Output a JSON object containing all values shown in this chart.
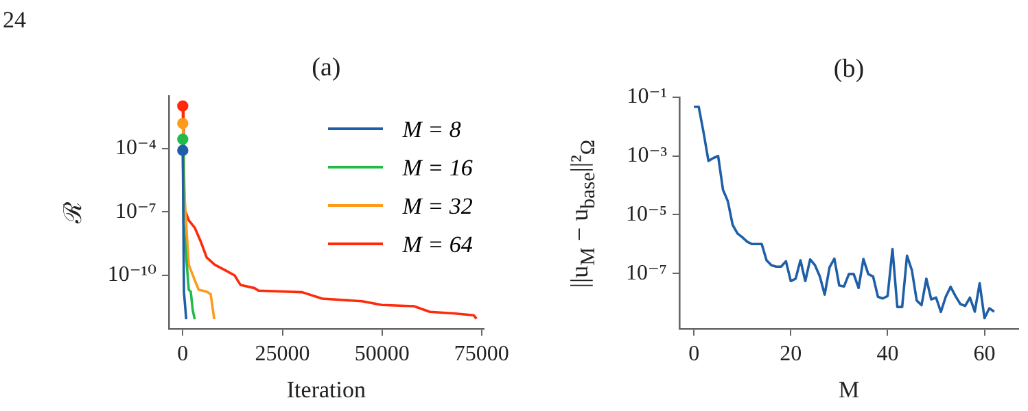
{
  "chart_data": [
    {
      "type": "line",
      "title": "(a)",
      "xlabel": "Iteration",
      "ylabel": "ℛ",
      "annotations": [
        "24"
      ],
      "log": "y",
      "grid": false,
      "legend": "top right",
      "xlim": [
        -3500,
        75500
      ],
      "xticks": [
        0,
        25000,
        50000,
        75000
      ],
      "ylim": [
        3e-13,
        0.03
      ],
      "yticks": [
        {
          "value": 0.0001,
          "label": "10⁻⁴"
        },
        {
          "value": 1e-07,
          "label": "10⁻⁷"
        },
        {
          "value": 1e-10,
          "label": "10⁻¹⁰"
        }
      ],
      "series": [
        {
          "name": "M = 8",
          "color": "#1f5fa8",
          "x": [
            0,
            300,
            870
          ],
          "values": [
            8e-05,
            1.6e-11,
            8.5e-13
          ]
        },
        {
          "name": "M = 16",
          "color": "#22bb4a",
          "x": [
            0,
            200,
            1500,
            2000,
            2500,
            3000
          ],
          "values": [
            0.00027,
            3.2e-08,
            2.1e-11,
            1.7e-11,
            2.3e-12,
            8.5e-13
          ]
        },
        {
          "name": "M = 32",
          "color": "#ff9a1a",
          "x": [
            0,
            500,
            1500,
            3000,
            4000,
            6000,
            7000,
            7900
          ],
          "values": [
            0.0015,
            3.5e-07,
            3.2e-10,
            6e-11,
            2.1e-11,
            1.7e-11,
            1.3e-11,
            8.5e-13
          ]
        },
        {
          "name": "M = 64",
          "color": "#ff2a0a",
          "x": [
            0,
            200,
            500,
            1500,
            3000,
            4500,
            6000,
            8000,
            11000,
            13000,
            14500,
            18000,
            19000,
            30000,
            35000,
            45000,
            50000,
            58000,
            62000,
            68000,
            73000,
            73700
          ],
          "values": [
            0.01,
            7e-06,
            1.3e-07,
            4e-08,
            1.8e-08,
            4e-09,
            7e-10,
            3.2e-10,
            1.6e-10,
            1e-10,
            3.5e-11,
            2.5e-11,
            1.9e-11,
            1.6e-11,
            8e-12,
            6e-12,
            4e-12,
            3.5e-12,
            1.9e-12,
            1.6e-12,
            1.3e-12,
            9e-13
          ]
        },
        {
          "type": "scatter",
          "marker": "circle",
          "x": [
            0,
            0,
            0,
            0
          ],
          "values": [
            0.01,
            0.0015,
            0.00027,
            8e-05
          ],
          "colors": [
            "#ff2a0a",
            "#ff9a1a",
            "#22bb4a",
            "#1f5fa8"
          ]
        }
      ]
    },
    {
      "type": "line",
      "title": "(b)",
      "xlabel": "M",
      "ylabel": "||u$_{M}$ − u$_{base}$||²$_{Ω}$",
      "log": "y",
      "grid": false,
      "xlim": [
        -3,
        67
      ],
      "xticks": [
        0,
        20,
        40,
        60
      ],
      "ylim": [
        1.3e-09,
        0.1
      ],
      "yticks": [
        {
          "value": 0.1,
          "label": "10⁻¹"
        },
        {
          "value": 0.001,
          "label": "10⁻³"
        },
        {
          "value": 1e-05,
          "label": "10⁻⁵"
        },
        {
          "value": 1e-07,
          "label": "10⁻⁷"
        }
      ],
      "series": [
        {
          "color": "#1f5fa8",
          "x": [
            0,
            1,
            2,
            3,
            4,
            5,
            6,
            7,
            8,
            9,
            10,
            11,
            12,
            13,
            14,
            15,
            16,
            17,
            18,
            19,
            20,
            21,
            22,
            23,
            24,
            25,
            26,
            27,
            28,
            29,
            30,
            31,
            32,
            33,
            34,
            35,
            36,
            37,
            38,
            39,
            40,
            41,
            42,
            43,
            44,
            45,
            46,
            47,
            48,
            49,
            50,
            51,
            52,
            53,
            54,
            55,
            56,
            57,
            58,
            59,
            60,
            61,
            62
          ],
          "values": [
            0.047,
            0.047,
            0.0062,
            0.00068,
            0.00085,
            0.001,
            7.1e-05,
            2.9e-05,
            4.5e-06,
            2.3e-06,
            1.7e-06,
            1.2e-06,
            1e-06,
            1e-06,
            1e-06,
            2.8e-07,
            1.9e-07,
            1.7e-07,
            1.7e-07,
            2.6e-07,
            5.5e-08,
            6.6e-08,
            2.8e-07,
            5.5e-08,
            3e-07,
            1.9e-07,
            7.9e-08,
            1.9e-08,
            1.6e-07,
            3.2e-07,
            3.9e-08,
            3.6e-08,
            9.5e-08,
            9.5e-08,
            3.2e-08,
            3.1e-07,
            9.5e-08,
            7.9e-08,
            1.6e-08,
            1.4e-08,
            1.7e-08,
            6.8e-07,
            7.2e-09,
            7.2e-09,
            4e-07,
            1.3e-07,
            1.2e-08,
            8.3e-09,
            6.6e-08,
            1.3e-08,
            1.5e-08,
            4.9e-09,
            1.6e-08,
            3.5e-08,
            1.7e-08,
            9.1e-09,
            7.8e-09,
            1.5e-08,
            5e-09,
            4.6e-08,
            3e-09,
            6.5e-09,
            5e-09
          ]
        }
      ]
    }
  ]
}
